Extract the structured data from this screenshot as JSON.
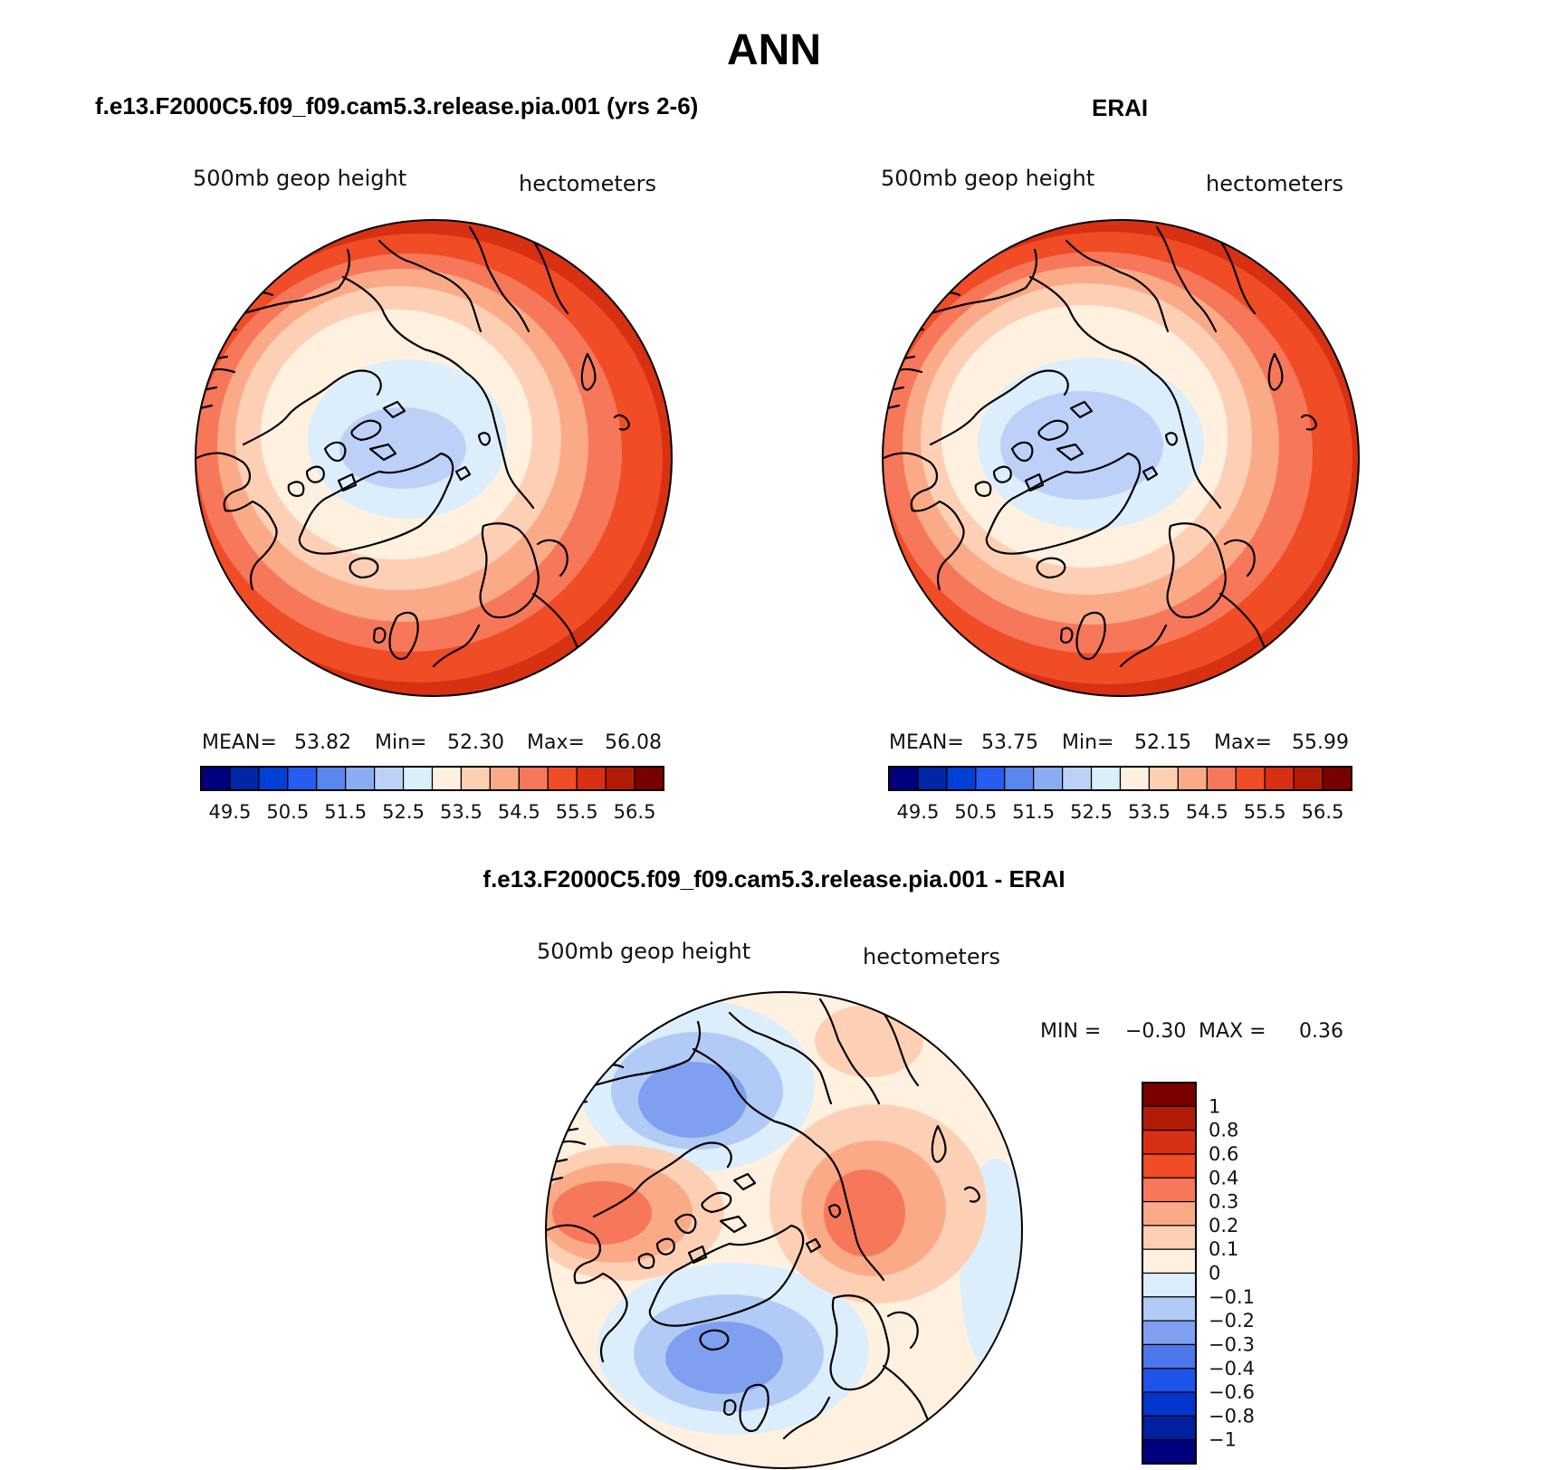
{
  "figure_title": "ANN",
  "panels": [
    {
      "title": "f.e13.F2000C5.f09_f09.cam5.3.release.pia.001 (yrs 2-6)",
      "variable_label": "500mb geop height",
      "units_label": "hectometers",
      "stats": {
        "mean_label": "MEAN=",
        "mean": "53.82",
        "min_label": "Min=",
        "min": "52.30",
        "max_label": "Max=",
        "max": "56.08"
      }
    },
    {
      "title": "ERAI",
      "variable_label": "500mb geop height",
      "units_label": "hectometers",
      "stats": {
        "mean_label": "MEAN=",
        "mean": "53.75",
        "min_label": "Min=",
        "min": "52.15",
        "max_label": "Max=",
        "max": "55.99"
      }
    },
    {
      "title": "f.e13.F2000C5.f09_f09.cam5.3.release.pia.001 - ERAI",
      "variable_label": "500mb geop height",
      "units_label": "hectometers",
      "stats": {
        "min_label": "MIN =",
        "min": "−0.30",
        "max_label": "MAX =",
        "max": "0.36"
      }
    }
  ],
  "colorbar_abs": {
    "colors": [
      "#00007f",
      "#0026a6",
      "#0040d6",
      "#265cf0",
      "#5a86f0",
      "#8cacf2",
      "#bdd0f8",
      "#dceefc",
      "#fff0e0",
      "#fdd0b5",
      "#fbaa88",
      "#f7775a",
      "#f04c25",
      "#d83012",
      "#b01c05",
      "#7a0000"
    ],
    "tick_labels": [
      "49.5",
      "50.5",
      "51.5",
      "52.5",
      "53.5",
      "54.5",
      "55.5",
      "56.5"
    ]
  },
  "colorbar_diff": {
    "colors": [
      "#00007f",
      "#0020a0",
      "#0036cc",
      "#1f54ea",
      "#4c78ec",
      "#7fa0f0",
      "#b2cbf6",
      "#dceefc",
      "#fff0e0",
      "#fdd0b5",
      "#fbaa88",
      "#f7775a",
      "#f04c25",
      "#d83012",
      "#b01c05",
      "#7a0000"
    ],
    "tick_labels": [
      "−1",
      "−0.8",
      "−0.6",
      "−0.4",
      "−0.3",
      "−0.2",
      "−0.1",
      "0",
      "0.1",
      "0.2",
      "0.3",
      "0.4",
      "0.6",
      "0.8",
      "1"
    ]
  },
  "chart_data": [
    {
      "type": "heatmap",
      "projection": "north polar stereographic",
      "title": "f.e13.F2000C5.f09_f09.cam5.3.release.pia.001 (yrs 2-6)",
      "variable": "500mb geop height",
      "units": "hectometers",
      "mean": 53.82,
      "min": 52.3,
      "max": 56.08,
      "contour_levels": [
        49.5,
        50,
        50.5,
        51,
        51.5,
        52,
        52.5,
        53,
        53.5,
        54,
        54.5,
        55,
        55.5,
        56,
        56.5
      ]
    },
    {
      "type": "heatmap",
      "projection": "north polar stereographic",
      "title": "ERAI",
      "variable": "500mb geop height",
      "units": "hectometers",
      "mean": 53.75,
      "min": 52.15,
      "max": 55.99,
      "contour_levels": [
        49.5,
        50,
        50.5,
        51,
        51.5,
        52,
        52.5,
        53,
        53.5,
        54,
        54.5,
        55,
        55.5,
        56,
        56.5
      ]
    },
    {
      "type": "heatmap",
      "projection": "north polar stereographic",
      "title": "f.e13.F2000C5.f09_f09.cam5.3.release.pia.001 - ERAI",
      "variable": "500mb geop height",
      "units": "hectometers",
      "min": -0.3,
      "max": 0.36,
      "contour_levels": [
        -1,
        -0.8,
        -0.6,
        -0.4,
        -0.3,
        -0.2,
        -0.1,
        0,
        0.1,
        0.2,
        0.3,
        0.4,
        0.6,
        0.8,
        1
      ]
    }
  ]
}
